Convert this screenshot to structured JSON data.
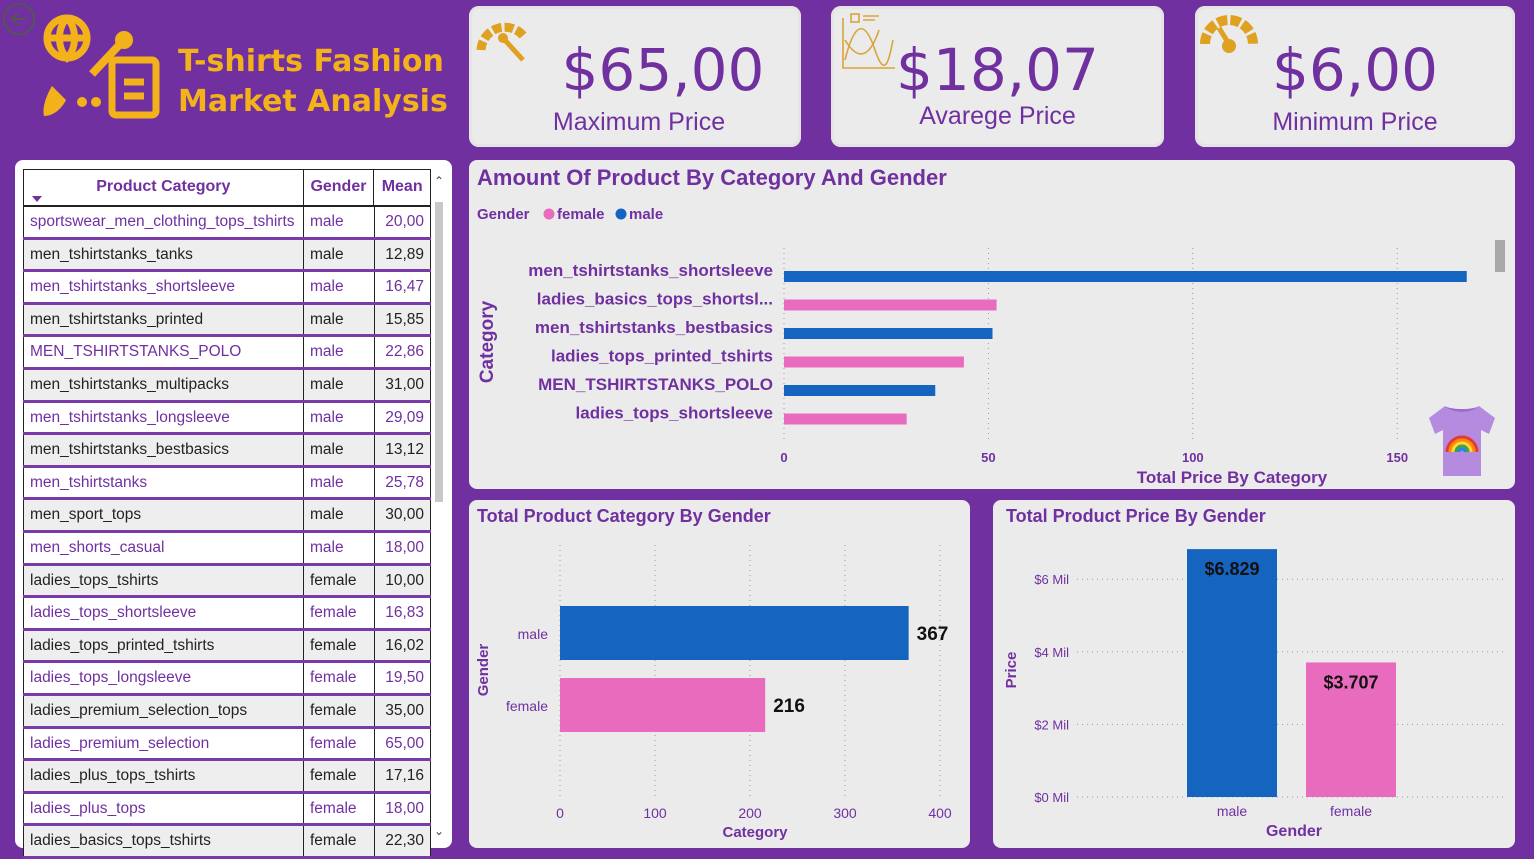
{
  "header": {
    "title_line1": "T-shirts Fashion",
    "title_line2": "Market Analysis"
  },
  "kpis": [
    {
      "value": "$65,00",
      "label": "Maximum Price",
      "icon": "speedometer-icon"
    },
    {
      "value": "$18,07",
      "label": "Avarege Price",
      "icon": "chart-analysis-icon"
    },
    {
      "value": "$6,00",
      "label": "Minimum Price",
      "icon": "gauge-icon"
    }
  ],
  "table": {
    "columns": [
      "Product Category",
      "Gender",
      "Mean"
    ],
    "rows": [
      [
        "sportswear_men_clothing_tops_tshirts",
        "male",
        "20,00"
      ],
      [
        "men_tshirtstanks_tanks",
        "male",
        "12,89"
      ],
      [
        "men_tshirtstanks_shortsleeve",
        "male",
        "16,47"
      ],
      [
        "men_tshirtstanks_printed",
        "male",
        "15,85"
      ],
      [
        "MEN_TSHIRTSTANKS_POLO",
        "male",
        "22,86"
      ],
      [
        "men_tshirtstanks_multipacks",
        "male",
        "31,00"
      ],
      [
        "men_tshirtstanks_longsleeve",
        "male",
        "29,09"
      ],
      [
        "men_tshirtstanks_bestbasics",
        "male",
        "13,12"
      ],
      [
        "men_tshirtstanks",
        "male",
        "25,78"
      ],
      [
        "men_sport_tops",
        "male",
        "30,00"
      ],
      [
        "men_shorts_casual",
        "male",
        "18,00"
      ],
      [
        "ladies_tops_tshirts",
        "female",
        "10,00"
      ],
      [
        "ladies_tops_shortsleeve",
        "female",
        "16,83"
      ],
      [
        "ladies_tops_printed_tshirts",
        "female",
        "16,02"
      ],
      [
        "ladies_tops_longsleeve",
        "female",
        "19,50"
      ],
      [
        "ladies_premium_selection_tops",
        "female",
        "35,00"
      ],
      [
        "ladies_premium_selection",
        "female",
        "65,00"
      ],
      [
        "ladies_plus_tops_tshirts",
        "female",
        "17,16"
      ],
      [
        "ladies_plus_tops",
        "female",
        "18,00"
      ],
      [
        "ladies_basics_tops_tshirts",
        "female",
        "22,30"
      ]
    ]
  },
  "chart_data": [
    {
      "type": "bar",
      "orientation": "horizontal",
      "title": "Amount Of Product By Category And Gender",
      "legend_title": "Gender",
      "legend": [
        {
          "name": "female",
          "color": "#e96bbe"
        },
        {
          "name": "male",
          "color": "#1565c0"
        }
      ],
      "categories": [
        "men_tshirtstanks_shortsleeve",
        "ladies_basics_tops_shortsl...",
        "men_tshirtstanks_bestbasics",
        "ladies_tops_printed_tshirts",
        "MEN_TSHIRTSTANKS_POLO",
        "ladies_tops_shortsleeve"
      ],
      "values": [
        167,
        52,
        51,
        44,
        37,
        30
      ],
      "genders": [
        "male",
        "female",
        "male",
        "female",
        "male",
        "female"
      ],
      "xlabel": "Total Price By Category",
      "ylabel": "Category",
      "xticks": [
        0,
        50,
        100,
        150
      ],
      "xlim": [
        0,
        170
      ]
    },
    {
      "type": "bar",
      "orientation": "horizontal",
      "title": "Total Product Category By Gender",
      "categories": [
        "male",
        "female"
      ],
      "values": [
        367,
        216
      ],
      "labels": [
        "367",
        "216"
      ],
      "colors": [
        "#1565c0",
        "#e96bbe"
      ],
      "xlabel": "Category",
      "ylabel": "Gender",
      "xticks": [
        0,
        100,
        200,
        300,
        400
      ],
      "xlim": [
        0,
        400
      ]
    },
    {
      "type": "bar",
      "orientation": "vertical",
      "title": "Total Product Price By Gender",
      "categories": [
        "male",
        "female"
      ],
      "values": [
        6.829,
        3.707
      ],
      "labels": [
        "$6.829",
        "$3.707"
      ],
      "colors": [
        "#1565c0",
        "#e96bbe"
      ],
      "xlabel": "Gender",
      "ylabel": "Price",
      "yticks": [
        "$0 Mil",
        "$2 Mil",
        "$4 Mil",
        "$6 Mil"
      ],
      "ylim": [
        0,
        7
      ]
    }
  ]
}
